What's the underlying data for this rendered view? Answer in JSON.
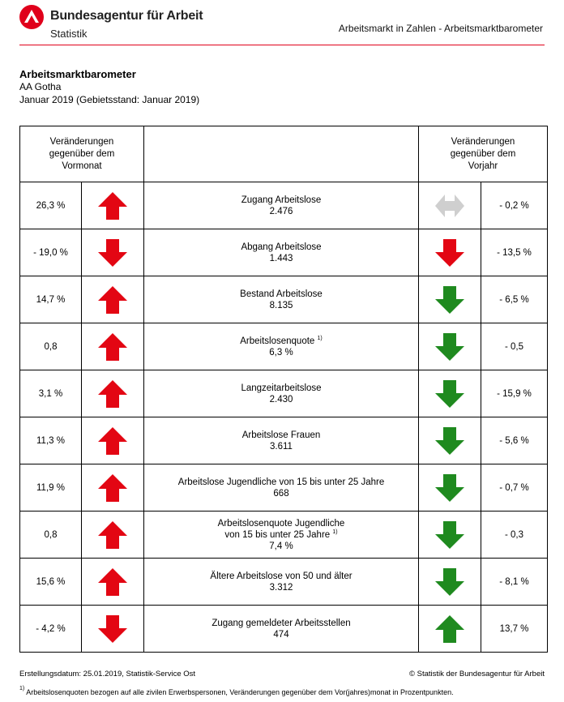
{
  "header": {
    "org_name": "Bundesagentur für Arbeit",
    "org_sub": "Statistik",
    "section": "Arbeitsmarkt in Zahlen - Arbeitsmarktbarometer",
    "logo_icon": "ba-logo-icon",
    "brand_color": "#e0001b"
  },
  "document": {
    "title": "Arbeitsmarktbarometer",
    "region": "AA Gotha",
    "period": "Januar 2019 (Gebietsstand: Januar 2019)"
  },
  "table": {
    "col_left_header": [
      "Veränderungen",
      "gegenüber dem",
      "Vormonat"
    ],
    "col_right_header": [
      "Veränderungen",
      "gegenüber dem",
      "Vorjahr"
    ],
    "rows": [
      {
        "mom": "26,3 %",
        "mom_arrow": "up",
        "mom_color": "#e30613",
        "label": [
          "Zugang Arbeitslose"
        ],
        "value": "2.476",
        "yoy_arrow": "both",
        "yoy_color": "#cfcfcf",
        "yoy": "- 0,2 %"
      },
      {
        "mom": "- 19,0 %",
        "mom_arrow": "down",
        "mom_color": "#e30613",
        "label": [
          "Abgang Arbeitslose"
        ],
        "value": "1.443",
        "yoy_arrow": "down",
        "yoy_color": "#e30613",
        "yoy": "- 13,5 %"
      },
      {
        "mom": "14,7 %",
        "mom_arrow": "up",
        "mom_color": "#e30613",
        "label": [
          "Bestand Arbeitslose"
        ],
        "value": "8.135",
        "yoy_arrow": "down",
        "yoy_color": "#1f8a1f",
        "yoy": "- 6,5 %"
      },
      {
        "mom": "0,8",
        "mom_arrow": "up",
        "mom_color": "#e30613",
        "label": [
          "Arbeitslosenquote"
        ],
        "sup": "1)",
        "value": "6,3 %",
        "yoy_arrow": "down",
        "yoy_color": "#1f8a1f",
        "yoy": "- 0,5"
      },
      {
        "mom": "3,1 %",
        "mom_arrow": "up",
        "mom_color": "#e30613",
        "label": [
          "Langzeitarbeitslose"
        ],
        "value": "2.430",
        "yoy_arrow": "down",
        "yoy_color": "#1f8a1f",
        "yoy": "- 15,9 %"
      },
      {
        "mom": "11,3 %",
        "mom_arrow": "up",
        "mom_color": "#e30613",
        "label": [
          "Arbeitslose Frauen"
        ],
        "value": "3.611",
        "yoy_arrow": "down",
        "yoy_color": "#1f8a1f",
        "yoy": "- 5,6 %"
      },
      {
        "mom": "11,9 %",
        "mom_arrow": "up",
        "mom_color": "#e30613",
        "label": [
          "Arbeitslose Jugendliche von 15 bis unter 25 Jahre"
        ],
        "value": "668",
        "yoy_arrow": "down",
        "yoy_color": "#1f8a1f",
        "yoy": "- 0,7 %"
      },
      {
        "mom": "0,8",
        "mom_arrow": "up",
        "mom_color": "#e30613",
        "label": [
          "Arbeitslosenquote Jugendliche",
          "von 15 bis unter 25 Jahre"
        ],
        "sup": "1)",
        "value": "7,4 %",
        "yoy_arrow": "down",
        "yoy_color": "#1f8a1f",
        "yoy": "- 0,3"
      },
      {
        "mom": "15,6 %",
        "mom_arrow": "up",
        "mom_color": "#e30613",
        "label": [
          "Ältere Arbeitslose von 50 und älter"
        ],
        "value": "3.312",
        "yoy_arrow": "down",
        "yoy_color": "#1f8a1f",
        "yoy": "- 8,1 %"
      },
      {
        "mom": "- 4,2 %",
        "mom_arrow": "down",
        "mom_color": "#e30613",
        "label": [
          "Zugang gemeldeter Arbeitsstellen"
        ],
        "value": "474",
        "yoy_arrow": "up",
        "yoy_color": "#1f8a1f",
        "yoy": "13,7 %"
      }
    ]
  },
  "footer": {
    "created": "Erstellungsdatum: 25.01.2019, Statistik-Service Ost",
    "copyright": "© Statistik der Bundesagentur für Arbeit",
    "footnote_mark": "1)",
    "footnote": " Arbeitslosenquoten bezogen auf alle zivilen Erwerbspersonen, Veränderungen gegenüber dem Vor(jahres)monat in Prozentpunkten."
  }
}
